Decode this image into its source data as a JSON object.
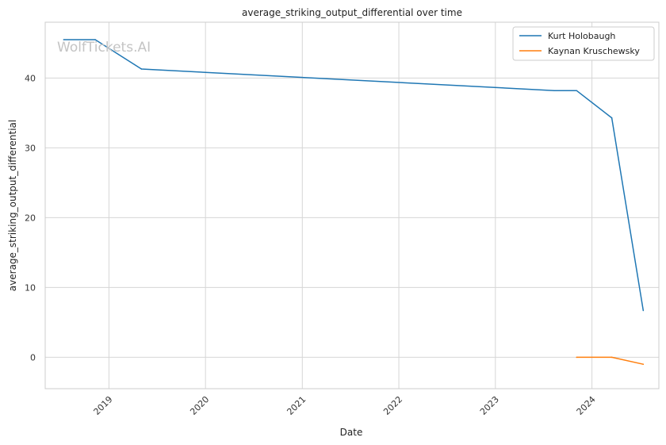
{
  "watermark": "WolfTickets.AI",
  "chart_data": {
    "type": "line",
    "title": "average_striking_output_differential over time",
    "xlabel": "Date",
    "ylabel": "average_striking_output_differential",
    "x_axis": "date",
    "xlim": [
      "2018-05-05",
      "2024-09-10"
    ],
    "ylim": [
      -4.5,
      48
    ],
    "x_ticks": [
      "2019",
      "2020",
      "2021",
      "2022",
      "2023",
      "2024"
    ],
    "y_ticks": [
      0,
      10,
      20,
      30,
      40
    ],
    "grid": true,
    "legend_position": "top-right",
    "series": [
      {
        "name": "Kurt Holobaugh",
        "color": "#1f77b4",
        "points": [
          {
            "x": "2018-07-14",
            "y": 45.5
          },
          {
            "x": "2018-11-10",
            "y": 45.5
          },
          {
            "x": "2019-05-04",
            "y": 41.3
          },
          {
            "x": "2023-08-12",
            "y": 38.2
          },
          {
            "x": "2023-11-04",
            "y": 38.2
          },
          {
            "x": "2024-03-16",
            "y": 34.3
          },
          {
            "x": "2024-07-13",
            "y": 6.7
          }
        ]
      },
      {
        "name": "Kaynan Kruschewsky",
        "color": "#ff7f0e",
        "points": [
          {
            "x": "2023-11-04",
            "y": 0.0
          },
          {
            "x": "2024-03-16",
            "y": 0.0
          },
          {
            "x": "2024-07-13",
            "y": -1.0
          }
        ]
      }
    ]
  }
}
